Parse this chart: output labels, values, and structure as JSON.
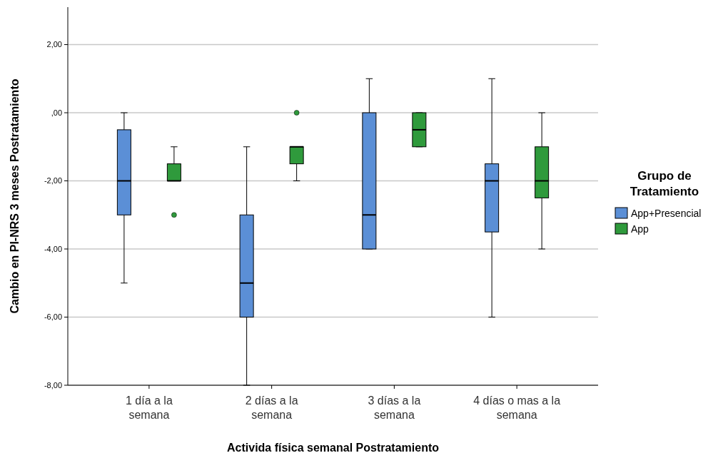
{
  "chart_data": {
    "type": "box",
    "xlabel": "Activida física semanal Postratamiento",
    "ylabel": "Cambio en PI-NRS 3 meses Postratamiento",
    "legend_title": "Grupo de Tratamiento",
    "legend": "right",
    "grid": "y",
    "categories": [
      "1 día a la semana",
      "2 días a la semana",
      "3 días a la semana",
      "4 días o mas a la semana"
    ],
    "ylim": [
      -8,
      3.1
    ],
    "yticks": [
      {
        "value": 2,
        "label": "2,00"
      },
      {
        "value": 0,
        "label": ",00"
      },
      {
        "value": -2,
        "label": "-2,00"
      },
      {
        "value": -4,
        "label": "-4,00"
      },
      {
        "value": -6,
        "label": "-6,00"
      },
      {
        "value": -8,
        "label": "-8,00"
      }
    ],
    "series": [
      {
        "name": "App+Presencial",
        "color": "#5b8fd6",
        "boxes": [
          {
            "low": -5,
            "q1": -3,
            "median": -2,
            "q3": -0.5,
            "high": 0
          },
          {
            "low": -8,
            "q1": -6,
            "median": -5,
            "q3": -3,
            "high": -1
          },
          {
            "low": -4,
            "q1": -4,
            "median": -3,
            "q3": 0,
            "high": 1
          },
          {
            "low": -6,
            "q1": -3.5,
            "median": -2,
            "q3": -1.5,
            "high": 1
          }
        ]
      },
      {
        "name": "App",
        "color": "#2f9a3c",
        "boxes": [
          {
            "low": -2,
            "q1": -2,
            "median": -2,
            "q3": -1.5,
            "high": -1,
            "outliers": [
              -3
            ]
          },
          {
            "low": -2,
            "q1": -1.5,
            "median": -1,
            "q3": -1,
            "high": -1,
            "outliers": [
              0
            ]
          },
          {
            "low": -1,
            "q1": -1,
            "median": -0.5,
            "q3": 0,
            "high": 0
          },
          {
            "low": -4,
            "q1": -2.5,
            "median": -2,
            "q3": -1,
            "high": 0
          }
        ]
      }
    ]
  }
}
